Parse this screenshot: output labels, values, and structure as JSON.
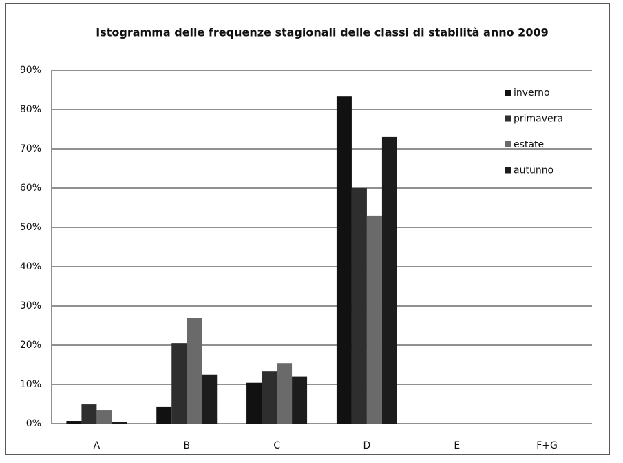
{
  "chart_data": {
    "type": "bar",
    "title": "Istogramma delle frequenze stagionali delle classi di stabilità anno 2009",
    "categories": [
      "A",
      "B",
      "C",
      "D",
      "E",
      "F+G"
    ],
    "series": [
      {
        "name": "inverno",
        "color": "#111111",
        "values": [
          0.7,
          4.4,
          10.4,
          83.3,
          0,
          0
        ]
      },
      {
        "name": "primavera",
        "color": "#2e2e2e",
        "values": [
          4.9,
          20.5,
          13.3,
          60,
          0,
          0
        ]
      },
      {
        "name": "estate",
        "color": "#6a6a6a",
        "values": [
          3.5,
          27,
          15.4,
          53,
          0,
          0
        ]
      },
      {
        "name": "autunno",
        "color": "#1c1c1c",
        "values": [
          0.5,
          12.5,
          12,
          73,
          0,
          0
        ]
      }
    ],
    "ylim": [
      0,
      90
    ],
    "yticks": [
      {
        "value": 0,
        "label": "0%"
      },
      {
        "value": 10,
        "label": "10%"
      },
      {
        "value": 20,
        "label": "20%"
      },
      {
        "value": 30,
        "label": "30%"
      },
      {
        "value": 40,
        "label": "40%"
      },
      {
        "value": 50,
        "label": "50%"
      },
      {
        "value": 60,
        "label": "60%"
      },
      {
        "value": 70,
        "label": "70%"
      },
      {
        "value": 80,
        "label": "80%"
      },
      {
        "value": 90,
        "label": "90%"
      }
    ],
    "grid": true,
    "legend": "top-right"
  }
}
